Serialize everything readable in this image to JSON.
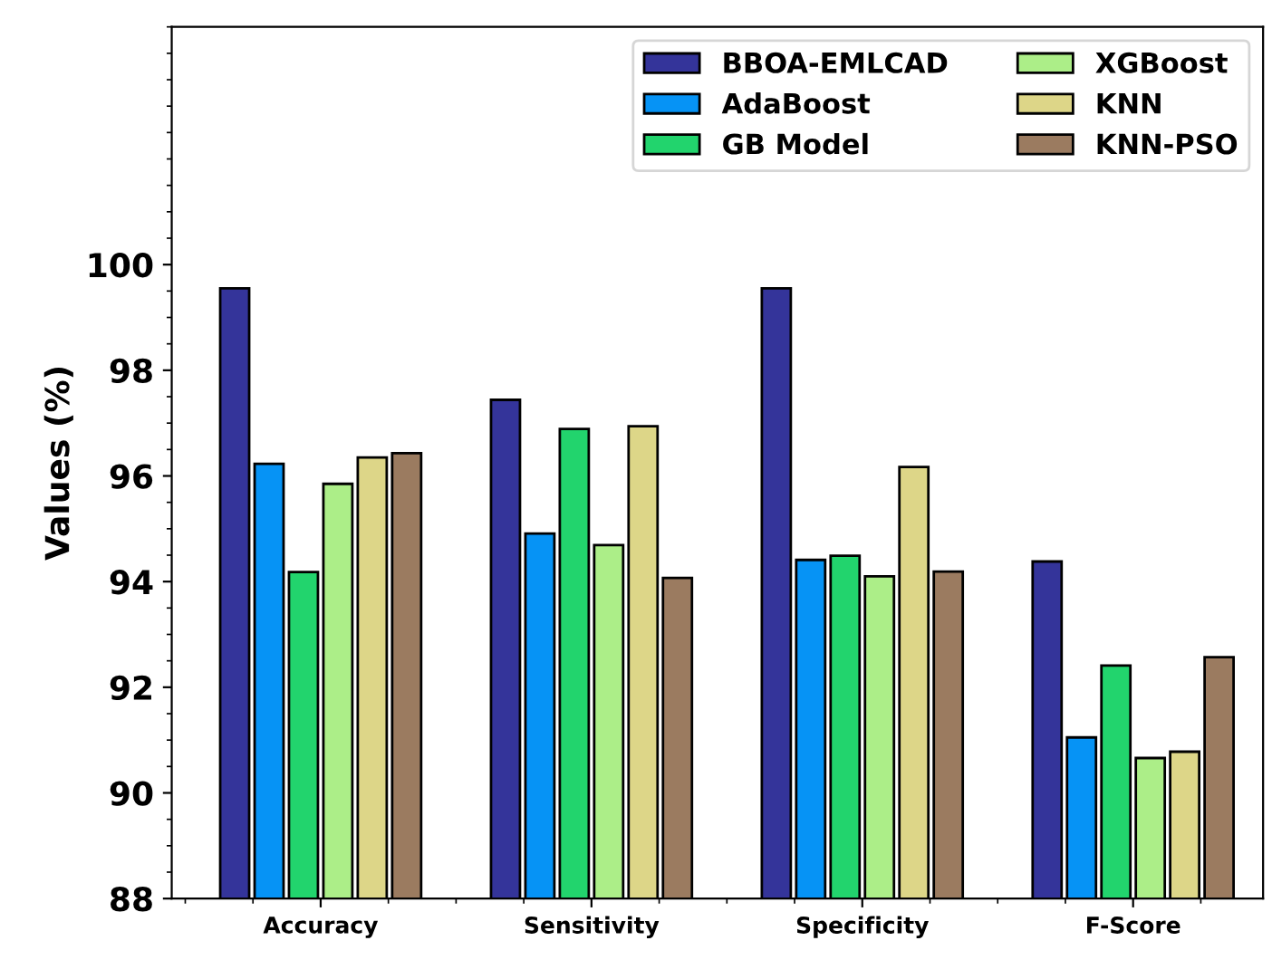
{
  "chart_data": {
    "type": "bar",
    "ylabel": "Values (%)",
    "categories": [
      "Accuracy",
      "Sensitivity",
      "Specificity",
      "F-Score"
    ],
    "series": [
      {
        "name": "BBOA-EMLCAD",
        "color": "#34349a",
        "values": [
          99.55,
          97.44,
          99.55,
          94.38
        ]
      },
      {
        "name": "AdaBoost",
        "color": "#0693f5",
        "values": [
          96.23,
          94.91,
          94.41,
          91.05
        ]
      },
      {
        "name": "GB Model",
        "color": "#22d46d",
        "values": [
          94.18,
          96.89,
          94.49,
          92.41
        ]
      },
      {
        "name": "XGBoost",
        "color": "#acee88",
        "values": [
          95.85,
          94.69,
          94.1,
          90.66
        ]
      },
      {
        "name": "KNN",
        "color": "#ddd688",
        "values": [
          96.35,
          96.94,
          96.17,
          90.78
        ]
      },
      {
        "name": "KNN-PSO",
        "color": "#9b7b60",
        "values": [
          96.43,
          94.07,
          94.19,
          92.57
        ]
      }
    ],
    "ylim": [
      88,
      104.5
    ],
    "yticks": [
      88,
      90,
      92,
      94,
      96,
      98,
      100
    ],
    "grid": false,
    "legend": "top right"
  }
}
